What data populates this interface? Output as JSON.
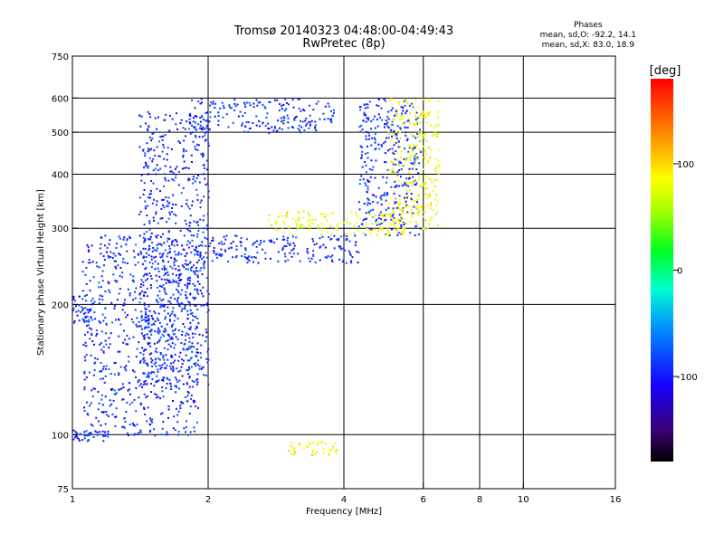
{
  "header": {
    "title_line1": "Tromsø 20140323 04:48:00-04:49:43",
    "title_line2": "RwPretec (8p)"
  },
  "phase_box": {
    "heading": "Phases",
    "line_o": "mean, sd,O: -92.2, 14.1",
    "line_x": "mean, sd,X: 83.0, 18.9"
  },
  "colorbar": {
    "unit_label": "[deg]",
    "ticks": [
      "100",
      "0",
      "-100"
    ],
    "tick_values": [
      100,
      0,
      -100
    ],
    "range": [
      -180,
      180
    ]
  },
  "chart_data": {
    "type": "scatter",
    "title": "Tromsø 20140323 04:48:00-04:49:43",
    "subtitle": "RwPretec (8p)",
    "xlabel": "Frequency [MHz]",
    "ylabel": "Stationary phase Virtual Height [km]",
    "xscale": "log",
    "yscale": "log",
    "xlim": [
      1,
      16
    ],
    "ylim": [
      75,
      750
    ],
    "x_ticks": [
      1,
      2,
      4,
      6,
      8,
      10,
      16
    ],
    "x_tick_labels": [
      "1",
      "2",
      "4",
      "6",
      "8",
      "10",
      "16"
    ],
    "y_ticks": [
      75,
      100,
      200,
      300,
      400,
      500,
      600,
      750
    ],
    "y_tick_labels": [
      "75",
      "100",
      "200",
      "300",
      "400",
      "500",
      "600",
      "750"
    ],
    "x_gridlines": [
      2,
      4,
      6,
      8,
      10
    ],
    "y_gridlines": [
      100,
      200,
      300,
      400,
      500,
      600
    ],
    "grid": true,
    "color_variable": "phase [deg]",
    "traces": [
      {
        "x_range": [
          1.8,
          3.8
        ],
        "y_range": [
          500,
          600
        ],
        "phase_mean": -92
      },
      {
        "x_range": [
          1.4,
          2.0
        ],
        "y_range": [
          130,
          560
        ],
        "phase_mean": -92
      },
      {
        "x_range": [
          1.05,
          1.9
        ],
        "y_range": [
          100,
          290
        ],
        "phase_mean": -92
      },
      {
        "x_range": [
          1.9,
          4.3
        ],
        "y_range": [
          250,
          290
        ],
        "phase_mean": -92
      },
      {
        "x_range": [
          4.3,
          5.9
        ],
        "y_range": [
          290,
          600
        ],
        "phase_mean": -92
      },
      {
        "x_range": [
          2.7,
          5.5
        ],
        "y_range": [
          290,
          330
        ],
        "phase_mean": 83
      },
      {
        "x_range": [
          5.0,
          6.5
        ],
        "y_range": [
          300,
          600
        ],
        "phase_mean": 83
      },
      {
        "x_range": [
          1.0,
          1.2
        ],
        "y_range": [
          97,
          103
        ],
        "phase_mean": -92
      },
      {
        "x_range": [
          3.0,
          3.9
        ],
        "y_range": [
          90,
          97
        ],
        "phase_mean": 83
      },
      {
        "x_range": [
          1.0,
          1.1
        ],
        "y_range": [
          180,
          210
        ],
        "phase_mean": -92
      }
    ]
  }
}
